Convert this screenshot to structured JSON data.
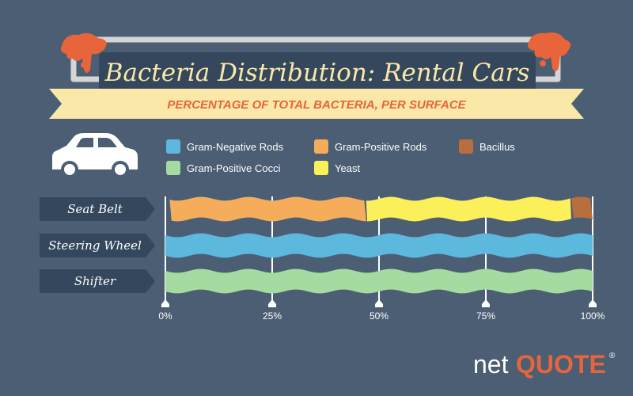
{
  "title": "Bacteria Distribution: Rental Cars",
  "subtitle": "PERCENTAGE OF TOTAL BACTERIA, PER SURFACE",
  "brand": {
    "prefix": "net",
    "name": "QUOTE",
    "mark": "®"
  },
  "icons": {
    "vehicle": "car-icon"
  },
  "colors": {
    "background": "#4b5e74",
    "banner": "#f9e8a8",
    "subtitle": "#e8643b",
    "label_tag": "#34475c",
    "paint": "#e8643b",
    "Gram-Negative Rods": "#5cb8dc",
    "Gram-Positive Rods": "#f6ad5b",
    "Bacillus": "#b86e3d",
    "Gram-Positive Cocci": "#a5dba0",
    "Yeast": "#fbf05a"
  },
  "chart_data": {
    "type": "bar",
    "orientation": "horizontal",
    "stacked": true,
    "categories": [
      "Seat Belt",
      "Steering Wheel",
      "Shifter"
    ],
    "series": [
      {
        "name": "Gram-Negative Rods",
        "values": [
          1,
          100,
          0
        ]
      },
      {
        "name": "Gram-Positive Rods",
        "values": [
          46,
          0,
          0
        ]
      },
      {
        "name": "Yeast",
        "values": [
          48,
          0,
          0
        ]
      },
      {
        "name": "Bacillus",
        "values": [
          5,
          0,
          0
        ]
      },
      {
        "name": "Gram-Positive Cocci",
        "values": [
          0,
          0,
          100
        ]
      }
    ],
    "legend_order": [
      "Gram-Negative Rods",
      "Gram-Positive Rods",
      "Bacillus",
      "Gram-Positive Cocci",
      "Yeast"
    ],
    "ticks": [
      0,
      25,
      50,
      75,
      100
    ],
    "tick_labels": [
      "0%",
      "25%",
      "50%",
      "75%",
      "100%"
    ],
    "xlim": [
      0,
      100
    ],
    "grid": true,
    "legend_position": "top"
  }
}
